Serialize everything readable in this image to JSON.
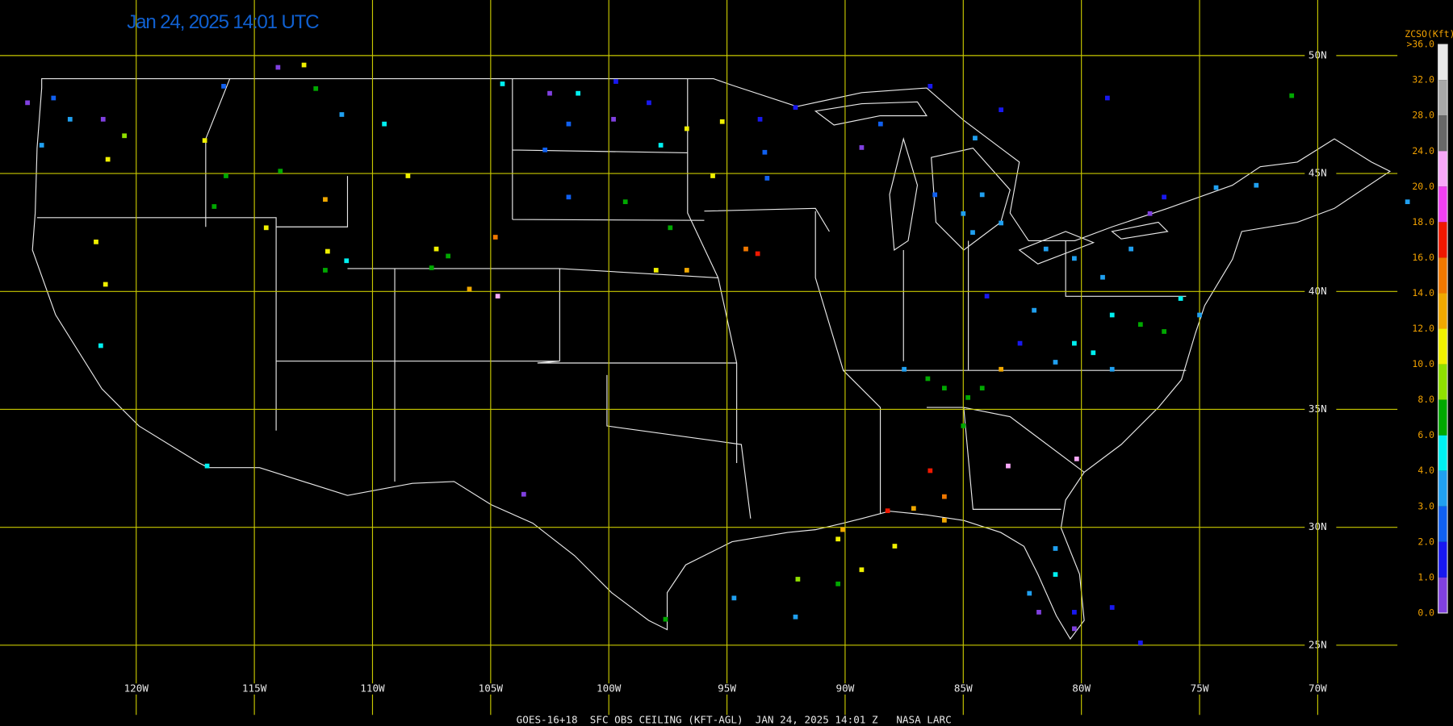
{
  "title": "Jan 24, 2025 14:01 UTC",
  "footer": "GOES-16+18  SFC OBS CEILING (KFT-AGL)  JAN 24, 2025 14:01 Z   NASA LARC",
  "lat_lines": [
    {
      "value": 50,
      "label": "50N"
    },
    {
      "value": 45,
      "label": "45N"
    },
    {
      "value": 40,
      "label": "40N"
    },
    {
      "value": 35,
      "label": "35N"
    },
    {
      "value": 30,
      "label": "30N"
    },
    {
      "value": 25,
      "label": "25N"
    }
  ],
  "lon_lines": [
    {
      "value": -120,
      "label": "120W"
    },
    {
      "value": -115,
      "label": "115W"
    },
    {
      "value": -110,
      "label": "110W"
    },
    {
      "value": -105,
      "label": "105W"
    },
    {
      "value": -100,
      "label": "100W"
    },
    {
      "value": -95,
      "label": "95W"
    },
    {
      "value": -90,
      "label": "90W"
    },
    {
      "value": -85,
      "label": "85W"
    },
    {
      "value": -80,
      "label": "80W"
    },
    {
      "value": -75,
      "label": "75W"
    },
    {
      "value": -70,
      "label": "70W"
    }
  ],
  "legend": {
    "title": "ZCSO(Kft)",
    "ticks": [
      {
        "value": 36,
        "label": ">36.0"
      },
      {
        "value": 32,
        "label": "32.0"
      },
      {
        "value": 28,
        "label": "28.0"
      },
      {
        "value": 24,
        "label": "24.0"
      },
      {
        "value": 20,
        "label": "20.0"
      },
      {
        "value": 18,
        "label": "18.0"
      },
      {
        "value": 16,
        "label": "16.0"
      },
      {
        "value": 14,
        "label": "14.0"
      },
      {
        "value": 12,
        "label": "12.0"
      },
      {
        "value": 10,
        "label": "10.0"
      },
      {
        "value": 8,
        "label": "8.0"
      },
      {
        "value": 6,
        "label": "6.0"
      },
      {
        "value": 4,
        "label": "4.0"
      },
      {
        "value": 3,
        "label": "3.0"
      },
      {
        "value": 2,
        "label": "2.0"
      },
      {
        "value": 1,
        "label": "1.0"
      },
      {
        "value": 0,
        "label": "0.0"
      }
    ],
    "colors": [
      "#e8e8e8",
      "#a8a8a8",
      "#686868",
      "#f8a8f8",
      "#f040f0",
      "#f01800",
      "#f07800",
      "#f0a800",
      "#f0f000",
      "#90e000",
      "#00a800",
      "#00f0f0",
      "#20a0f0",
      "#1060f0",
      "#1818f0",
      "#8040e0"
    ]
  },
  "stations": [
    [
      -123.5,
      48.2,
      2.5
    ],
    [
      -122.8,
      47.3,
      3.5
    ],
    [
      -124.0,
      46.2,
      3.5
    ],
    [
      -124.6,
      48.0,
      0.5
    ],
    [
      -121.4,
      47.3,
      0.5
    ],
    [
      -120.5,
      46.6,
      9
    ],
    [
      -121.2,
      45.6,
      11
    ],
    [
      -116.3,
      48.7,
      2.5
    ],
    [
      -114.0,
      49.5,
      0.5
    ],
    [
      -112.9,
      49.6,
      11
    ],
    [
      -112.4,
      48.6,
      7
    ],
    [
      -111.3,
      47.5,
      3.5
    ],
    [
      -109.5,
      47.1,
      5
    ],
    [
      -117.1,
      46.4,
      11
    ],
    [
      -116.2,
      44.9,
      7
    ],
    [
      -113.9,
      45.1,
      7
    ],
    [
      -116.7,
      43.6,
      7
    ],
    [
      -114.5,
      42.7,
      11
    ],
    [
      -112.0,
      43.9,
      13
    ],
    [
      -121.7,
      42.1,
      11
    ],
    [
      -121.3,
      40.3,
      11
    ],
    [
      -121.5,
      37.7,
      5
    ],
    [
      -117.0,
      32.6,
      5
    ],
    [
      -111.9,
      41.7,
      11
    ],
    [
      -112.0,
      40.9,
      7
    ],
    [
      -111.1,
      41.3,
      5
    ],
    [
      -108.5,
      44.9,
      11
    ],
    [
      -107.3,
      41.8,
      11
    ],
    [
      -106.8,
      41.5,
      7
    ],
    [
      -107.5,
      41.0,
      7
    ],
    [
      -105.9,
      40.1,
      13
    ],
    [
      -104.8,
      42.3,
      15
    ],
    [
      -104.7,
      39.8,
      22
    ],
    [
      -104.5,
      48.8,
      5
    ],
    [
      -102.5,
      48.4,
      0.5
    ],
    [
      -101.3,
      48.4,
      5
    ],
    [
      -99.7,
      48.9,
      1.5
    ],
    [
      -98.3,
      48.0,
      1.5
    ],
    [
      -101.7,
      47.1,
      2.5
    ],
    [
      -102.7,
      46.0,
      2.5
    ],
    [
      -99.8,
      47.3,
      0.5
    ],
    [
      -97.8,
      46.2,
      5
    ],
    [
      -96.7,
      46.9,
      11
    ],
    [
      -95.2,
      47.2,
      11
    ],
    [
      -101.7,
      44.0,
      2.5
    ],
    [
      -99.3,
      43.8,
      7
    ],
    [
      -97.4,
      42.7,
      7
    ],
    [
      -98.0,
      40.9,
      11
    ],
    [
      -96.7,
      40.9,
      13
    ],
    [
      -94.2,
      41.8,
      15
    ],
    [
      -93.7,
      41.6,
      17
    ],
    [
      -95.6,
      44.9,
      11
    ],
    [
      -93.6,
      47.3,
      1.5
    ],
    [
      -93.4,
      45.9,
      2.5
    ],
    [
      -93.3,
      44.8,
      2.5
    ],
    [
      -92.1,
      47.8,
      1.5
    ],
    [
      -84.5,
      46.5,
      3.5
    ],
    [
      -83.4,
      47.7,
      1.5
    ],
    [
      -86.2,
      44.1,
      2.5
    ],
    [
      -85.0,
      43.3,
      3.5
    ],
    [
      -84.2,
      44.1,
      3.5
    ],
    [
      -83.4,
      42.9,
      3.5
    ],
    [
      -84.6,
      42.5,
      3.5
    ],
    [
      -89.3,
      46.1,
      0.5
    ],
    [
      -88.5,
      47.1,
      2.5
    ],
    [
      -86.4,
      48.7,
      1.5
    ],
    [
      -78.9,
      48.2,
      1.5
    ],
    [
      -71.1,
      48.3,
      7
    ],
    [
      -81.5,
      41.8,
      3.5
    ],
    [
      -80.3,
      41.4,
      3.5
    ],
    [
      -79.1,
      40.6,
      3.5
    ],
    [
      -77.9,
      41.8,
      3.5
    ],
    [
      -77.1,
      43.3,
      0.5
    ],
    [
      -76.5,
      44.0,
      1.5
    ],
    [
      -74.3,
      44.4,
      3.5
    ],
    [
      -72.6,
      44.5,
      3.5
    ],
    [
      -66.2,
      43.8,
      3.5
    ],
    [
      -84.0,
      39.8,
      1.5
    ],
    [
      -82.0,
      39.2,
      3.5
    ],
    [
      -78.7,
      39.0,
      5
    ],
    [
      -77.5,
      38.6,
      7
    ],
    [
      -76.5,
      38.3,
      7
    ],
    [
      -75.8,
      39.7,
      5
    ],
    [
      -75.0,
      39.0,
      3.5
    ],
    [
      -80.3,
      37.8,
      5
    ],
    [
      -79.5,
      37.4,
      5
    ],
    [
      -78.7,
      36.7,
      3.5
    ],
    [
      -81.1,
      37.0,
      3.5
    ],
    [
      -83.4,
      36.7,
      13
    ],
    [
      -86.5,
      36.3,
      7
    ],
    [
      -85.8,
      35.9,
      7
    ],
    [
      -84.8,
      35.5,
      7
    ],
    [
      -84.2,
      35.9,
      7
    ],
    [
      -85.0,
      34.3,
      7
    ],
    [
      -87.5,
      36.7,
      3.5
    ],
    [
      -82.6,
      37.8,
      1.5
    ],
    [
      -86.4,
      32.4,
      17
    ],
    [
      -85.8,
      31.3,
      15
    ],
    [
      -88.2,
      30.7,
      17
    ],
    [
      -87.1,
      30.8,
      13
    ],
    [
      -85.8,
      30.3,
      13
    ],
    [
      -90.1,
      29.9,
      13
    ],
    [
      -90.3,
      29.5,
      11
    ],
    [
      -89.3,
      28.2,
      11
    ],
    [
      -87.9,
      29.2,
      11
    ],
    [
      -92.0,
      27.8,
      9
    ],
    [
      -90.3,
      27.6,
      7
    ],
    [
      -92.1,
      26.2,
      3.5
    ],
    [
      -94.7,
      27.0,
      3.5
    ],
    [
      -103.6,
      31.4,
      0.5
    ],
    [
      -83.1,
      32.6,
      22
    ],
    [
      -80.2,
      32.9,
      22
    ],
    [
      -97.6,
      26.1,
      7
    ],
    [
      -81.1,
      29.1,
      3.5
    ],
    [
      -81.1,
      28.0,
      5
    ],
    [
      -82.2,
      27.2,
      3.5
    ],
    [
      -80.3,
      26.4,
      1.5
    ],
    [
      -80.3,
      25.7,
      0.5
    ],
    [
      -81.8,
      26.4,
      0.5
    ],
    [
      -78.7,
      26.6,
      1.5
    ],
    [
      -77.5,
      25.1,
      1.5
    ]
  ]
}
